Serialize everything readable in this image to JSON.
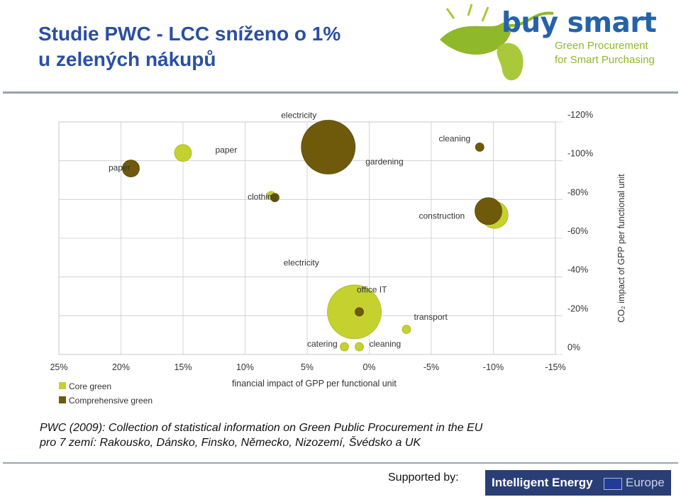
{
  "title": {
    "line1": "Studie PWC - LCC sníženo o 1%",
    "line2": "u zelených nákupů"
  },
  "logo": {
    "brand": "buy smart",
    "tagline1": "Green Procurement",
    "tagline2": "for Smart Purchasing"
  },
  "caption": {
    "line1": "PWC (2009): Collection of statistical information on Green Public Procurement in the EU",
    "line2": "pro 7 zemí: Rakousko, Dánsko, Finsko, Německo, Nizozemí, Švédsko a UK"
  },
  "footer": {
    "supported_label": "Supported by:",
    "banner_text": "Intelligent Energy",
    "banner_europe": "Europe"
  },
  "colors": {
    "title": "#2a4fa3",
    "core_green": "#c4d12f",
    "comprehensive_green": "#6f5a0c",
    "grid": "#cccccc"
  },
  "chart_data": {
    "type": "scatter",
    "xlabel": "financial impact of GPP per functional unit",
    "ylabel": "CO₂ impact of GPP per functional unit",
    "xlim": [
      25,
      -15
    ],
    "ylim": [
      0,
      -120
    ],
    "x_ticks": [
      "25%",
      "20%",
      "15%",
      "10%",
      "5%",
      "0%",
      "-5%",
      "-10%",
      "-15%"
    ],
    "y_ticks": [
      "0%",
      "-20%",
      "-40%",
      "-60%",
      "-80%",
      "-100%",
      "-120%"
    ],
    "x_tick_values": [
      25,
      20,
      15,
      10,
      5,
      0,
      -5,
      -10,
      -15
    ],
    "y_tick_values": [
      0,
      -20,
      -40,
      -60,
      -80,
      -100,
      -120
    ],
    "grid": true,
    "legend_position": "bottom-left",
    "series": [
      {
        "name": "Core green",
        "color": "#c4d12f",
        "points": [
          {
            "label": "paper",
            "x": 15,
            "y": -104,
            "size": 12
          },
          {
            "label": "gardening",
            "x": 2.1,
            "y": -106,
            "size": 6
          },
          {
            "label": "clothing",
            "x": 7.9,
            "y": -82,
            "size": 6
          },
          {
            "label": "construction",
            "x": -10.1,
            "y": -72,
            "size": 19
          },
          {
            "label": "office IT",
            "x": 1.2,
            "y": -22,
            "size": 38
          },
          {
            "label": "catering",
            "x": 2,
            "y": -4,
            "size": 6
          },
          {
            "label": "cleaning",
            "x": 0.8,
            "y": -4,
            "size": 6
          },
          {
            "label": "transport",
            "x": -3,
            "y": -13,
            "size": 6
          }
        ]
      },
      {
        "name": "Comprehensive green",
        "color": "#6f5a0c",
        "points": [
          {
            "label": "paper",
            "x": 19.2,
            "y": -96,
            "size": 12
          },
          {
            "label": "electricity",
            "x": 3.3,
            "y": -107,
            "size": 38
          },
          {
            "label": "cleaning",
            "x": -8.9,
            "y": -107,
            "size": 6
          },
          {
            "label": "clothing",
            "x": 7.6,
            "y": -81,
            "size": 6
          },
          {
            "label": "construction",
            "x": -9.6,
            "y": -74,
            "size": 19
          },
          {
            "label": "office IT",
            "x": 0.8,
            "y": -22,
            "size": 6
          }
        ]
      }
    ],
    "annotations": [
      {
        "text": "electricity",
        "x": 7.1,
        "y": -122
      },
      {
        "text": "paper",
        "x": 12.4,
        "y": -104
      },
      {
        "text": "paper",
        "x": 21,
        "y": -95
      },
      {
        "text": "gardening",
        "x": 0.3,
        "y": -98
      },
      {
        "text": "cleaning",
        "x": -5.6,
        "y": -110
      },
      {
        "text": "clothing",
        "x": 9.8,
        "y": -80
      },
      {
        "text": "construction",
        "x": -4,
        "y": -70
      },
      {
        "text": "electricity",
        "x": 6.9,
        "y": -46
      },
      {
        "text": "office IT",
        "x": 1.0,
        "y": -32
      },
      {
        "text": "transport",
        "x": -3.6,
        "y": -18
      },
      {
        "text": "catering",
        "x": 5.0,
        "y": -4
      },
      {
        "text": "cleaning",
        "x": 0,
        "y": -4
      }
    ]
  }
}
